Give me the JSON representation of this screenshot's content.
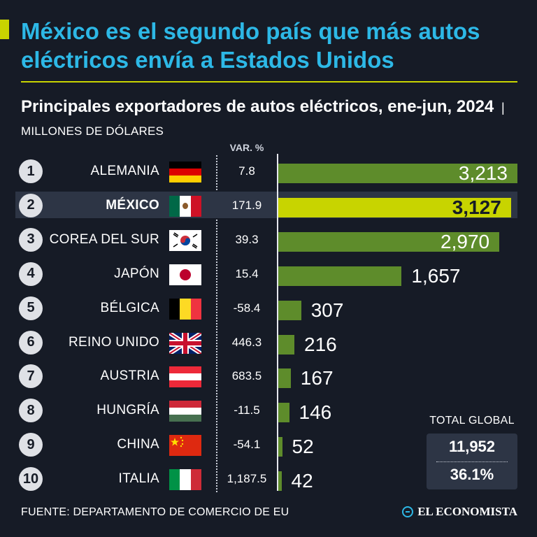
{
  "headline": "México es el segundo país que más autos eléctricos envía a Estados Unidos",
  "subtitle": {
    "main": "Principales exportadores de autos eléctricos, ene-jun, 2024",
    "separator": "|",
    "units": "MILLONES DE DÓLARES"
  },
  "var_header": "VAR. %",
  "chart_data": {
    "type": "bar",
    "orientation": "horizontal",
    "title": "Principales exportadores de autos eléctricos, ene-jun, 2024",
    "units": "MILLONES DE DÓLARES",
    "categories": [
      "ALEMANIA",
      "MÉXICO",
      "COREA DEL SUR",
      "JAPÓN",
      "BÉLGICA",
      "REINO UNIDO",
      "AUSTRIA",
      "HUNGRÍA",
      "CHINA",
      "ITALIA"
    ],
    "ranks": [
      "1",
      "2",
      "3",
      "4",
      "5",
      "6",
      "7",
      "8",
      "9",
      "10"
    ],
    "values": [
      3213,
      3127,
      2970,
      1657,
      307,
      216,
      167,
      146,
      52,
      42
    ],
    "value_labels": [
      "3,213",
      "3,127",
      "2,970",
      "1,657",
      "307",
      "216",
      "167",
      "146",
      "52",
      "42"
    ],
    "var_pct": [
      "7.8",
      "171.9",
      "39.3",
      "15.4",
      "-58.4",
      "446.3",
      "683.5",
      "-11.5",
      "-54.1",
      "1,187.5"
    ],
    "highlight": "MÉXICO",
    "xlim": [
      0,
      3213
    ],
    "colors": {
      "bar": "#5e8c2b",
      "highlight": "#c8d400"
    }
  },
  "flags": [
    "germany-flag",
    "mexico-flag",
    "south-korea-flag",
    "japan-flag",
    "belgium-flag",
    "uk-flag",
    "austria-flag",
    "hungary-flag",
    "china-flag",
    "italy-flag"
  ],
  "total": {
    "label": "TOTAL GLOBAL",
    "value": "11,952",
    "var": "36.1%"
  },
  "source": "FUENTE: DEPARTAMENTO DE COMERCIO DE EU",
  "brand": "EL ECONOMISTA",
  "colors": {
    "headline": "#2db8e6",
    "accent": "#c8d400",
    "background": "#161b26"
  }
}
